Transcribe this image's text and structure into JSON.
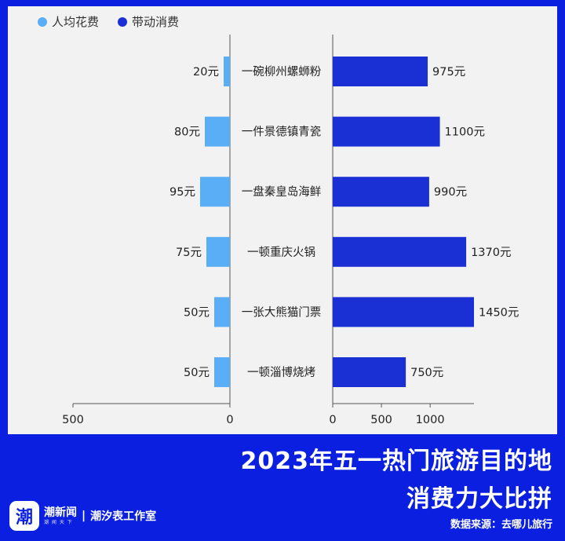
{
  "chart_data": {
    "type": "bar",
    "orientation": "horizontal",
    "layout": "butterfly",
    "categories": [
      "一碗柳州螺蛳粉",
      "一件景德镇青瓷",
      "一盘秦皇岛海鲜",
      "一顿重庆火锅",
      "一张大熊猫门票",
      "一顿淄博烧烤"
    ],
    "series": [
      {
        "name": "人均花费",
        "color": "#5aaef5",
        "values": [
          20,
          80,
          95,
          75,
          50,
          50
        ],
        "labels": [
          "20元",
          "80元",
          "95元",
          "75元",
          "50元",
          "50元"
        ],
        "xlim": [
          0,
          500
        ],
        "ticks": [
          "500",
          "0"
        ],
        "direction": "left"
      },
      {
        "name": "带动消费",
        "color": "#1a2fd4",
        "values": [
          975,
          1100,
          990,
          1370,
          1450,
          750
        ],
        "labels": [
          "975元",
          "1100元",
          "990元",
          "1370元",
          "1450元",
          "750元"
        ],
        "xlim": [
          0,
          1450
        ],
        "ticks": [
          "0",
          "500",
          "1000"
        ],
        "direction": "right"
      }
    ],
    "legend_position": "top-left",
    "grid": false
  },
  "title_line1": "2023年五一热门旅游目的地",
  "title_line2": "消费力大比拼",
  "source": "数据来源：去哪儿旅行",
  "brand": {
    "logo_glyph": "潮",
    "name": "潮新闻",
    "sub": "潮 闻 天 下",
    "separator": "|",
    "studio": "潮汐表工作室"
  }
}
